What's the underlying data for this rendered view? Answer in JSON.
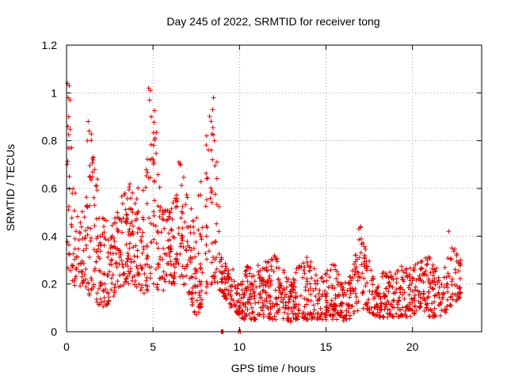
{
  "chart_data": {
    "type": "scatter",
    "title": "Day 245 of 2022, SRMTID for receiver tong",
    "xlabel": "GPS time / hours",
    "ylabel": "SRMTID / TECUs",
    "xlim": [
      0,
      24
    ],
    "ylim": [
      0,
      1.2
    ],
    "xticks": [
      0,
      5,
      10,
      15,
      20
    ],
    "xtick_labels": [
      "0",
      "5",
      "10",
      "15",
      "20"
    ],
    "yticks": [
      0,
      0.2,
      0.4,
      0.6,
      0.8,
      1,
      1.2
    ],
    "ytick_labels": [
      "0",
      "0.2",
      "0.4",
      "0.6",
      "0.8",
      "1",
      "1.2"
    ],
    "grid": true,
    "marker": "+",
    "series_color": "#e00000",
    "x_range_hours": [
      0,
      22.8
    ],
    "envelope": {
      "hours": [
        0,
        0.5,
        1,
        1.5,
        2,
        2.5,
        3,
        3.5,
        4,
        4.5,
        5,
        5.5,
        6,
        6.5,
        7,
        7.5,
        8,
        8.5,
        9,
        9.5,
        10,
        10.5,
        11,
        11.5,
        12,
        12.5,
        13,
        13.5,
        14,
        14.5,
        15,
        15.5,
        16,
        16.5,
        17,
        17.5,
        18,
        18.5,
        19,
        19.5,
        20,
        20.5,
        21,
        21.5,
        22,
        22.5,
        22.8
      ],
      "low": [
        0.25,
        0.18,
        0.2,
        0.12,
        0.1,
        0.12,
        0.18,
        0.2,
        0.18,
        0.15,
        0.2,
        0.15,
        0.2,
        0.2,
        0.18,
        0.05,
        0.15,
        0.2,
        0.15,
        0.1,
        0.05,
        0.05,
        0.05,
        0.05,
        0.05,
        0.05,
        0.04,
        0.05,
        0.05,
        0.05,
        0.05,
        0.05,
        0.04,
        0.05,
        0.1,
        0.08,
        0.06,
        0.06,
        0.06,
        0.06,
        0.06,
        0.1,
        0.06,
        0.06,
        0.08,
        0.12,
        0.15
      ],
      "high": [
        1.05,
        0.6,
        0.5,
        0.88,
        0.5,
        0.45,
        0.55,
        0.6,
        0.66,
        0.6,
        1.02,
        0.55,
        0.5,
        0.72,
        0.6,
        0.5,
        0.83,
        0.98,
        0.3,
        0.28,
        0.22,
        0.28,
        0.28,
        0.3,
        0.32,
        0.3,
        0.22,
        0.3,
        0.32,
        0.25,
        0.25,
        0.3,
        0.2,
        0.25,
        0.44,
        0.3,
        0.25,
        0.25,
        0.25,
        0.3,
        0.28,
        0.3,
        0.32,
        0.25,
        0.32,
        0.42,
        0.3
      ]
    },
    "spikes": [
      {
        "x": 0.05,
        "y": 1.04
      },
      {
        "x": 0.15,
        "y": 1.03
      },
      {
        "x": 0.1,
        "y": 0.98
      },
      {
        "x": 0.2,
        "y": 0.97
      },
      {
        "x": 0.12,
        "y": 0.9
      },
      {
        "x": 0.08,
        "y": 0.86
      },
      {
        "x": 1.25,
        "y": 0.88
      },
      {
        "x": 1.3,
        "y": 0.84
      },
      {
        "x": 1.2,
        "y": 0.8
      },
      {
        "x": 4.75,
        "y": 1.02
      },
      {
        "x": 4.85,
        "y": 1.01
      },
      {
        "x": 4.8,
        "y": 0.97
      },
      {
        "x": 4.9,
        "y": 0.9
      },
      {
        "x": 6.5,
        "y": 0.71
      },
      {
        "x": 8.1,
        "y": 0.82
      },
      {
        "x": 8.5,
        "y": 0.98
      },
      {
        "x": 8.45,
        "y": 0.93
      },
      {
        "x": 8.55,
        "y": 0.8
      },
      {
        "x": 16.9,
        "y": 0.43
      },
      {
        "x": 17.0,
        "y": 0.44
      },
      {
        "x": 22.1,
        "y": 0.42
      },
      {
        "x": 8.95,
        "y": 0.0
      },
      {
        "x": 9.0,
        "y": 0.0
      },
      {
        "x": 9.05,
        "y": 0.0
      },
      {
        "x": 9.95,
        "y": 0.0
      },
      {
        "x": 10.05,
        "y": 0.0
      }
    ],
    "point_count": 1700
  }
}
